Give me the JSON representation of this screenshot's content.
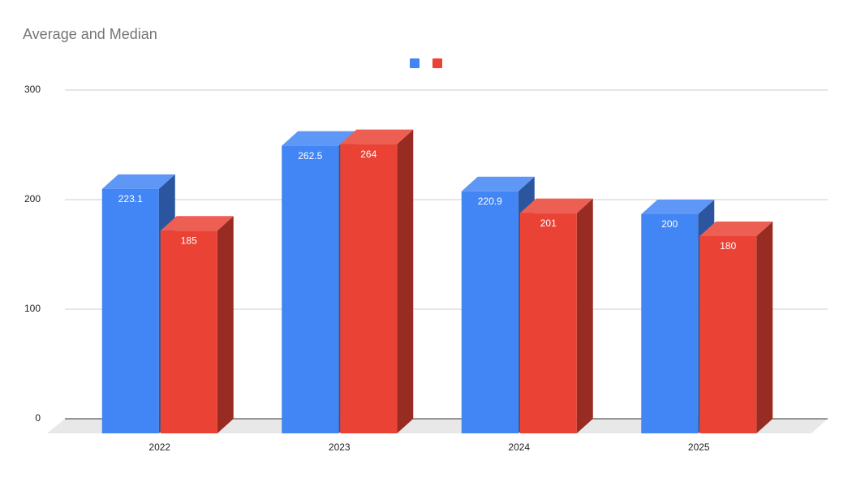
{
  "chart_data": {
    "type": "bar3d",
    "title": "Average and Median",
    "categories": [
      "2022",
      "2023",
      "2024",
      "2025"
    ],
    "series": [
      {
        "color": "#4285f4",
        "values": [
          223.1,
          262.5,
          220.9,
          200
        ]
      },
      {
        "color": "#ea4335",
        "values": [
          185,
          264,
          201,
          180
        ]
      }
    ],
    "ylim": [
      0,
      300
    ],
    "yticks": [
      0,
      100,
      200,
      300
    ],
    "grid": true,
    "legend": "top"
  }
}
